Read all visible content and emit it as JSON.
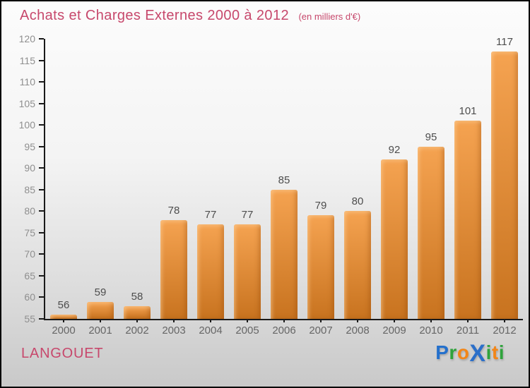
{
  "header": {
    "title": "Achats et Charges Externes 2000 à 2012",
    "subtitle": "(en milliers d'€)"
  },
  "footer": {
    "location": "LANGOUET",
    "logo": {
      "name": "Proxiti",
      "letters": [
        {
          "char": "P",
          "color": "#2470cc",
          "big": false
        },
        {
          "char": "r",
          "color": "#2fa33c",
          "big": false
        },
        {
          "char": "o",
          "color": "#f28618",
          "big": false
        },
        {
          "char": "X",
          "color": "#2b6fc9",
          "big": true
        },
        {
          "char": "i",
          "color": "#2fa33c",
          "big": false
        },
        {
          "char": "t",
          "color": "#f28618",
          "big": false
        },
        {
          "char": "i",
          "color": "#2fa33c",
          "big": false
        }
      ]
    }
  },
  "colors": {
    "title": "#c7486c",
    "location": "#c7486c",
    "bar_top": "#f5a351",
    "bar_bottom": "#c8731f",
    "axis": "#1a1a1a",
    "ytick_label": "#8f8f8f",
    "xtick_label": "#666666",
    "value_label": "#4d4d4d"
  },
  "chart_data": {
    "type": "bar",
    "title": "Achats et Charges Externes 2000 à 2012",
    "subtitle": "(en milliers d'€)",
    "categories": [
      "2000",
      "2001",
      "2002",
      "2003",
      "2004",
      "2005",
      "2006",
      "2007",
      "2008",
      "2009",
      "2010",
      "2011",
      "2012"
    ],
    "values": [
      56,
      59,
      58,
      78,
      77,
      77,
      85,
      79,
      80,
      92,
      95,
      101,
      117
    ],
    "xlabel": "",
    "ylabel": "",
    "ylim": [
      55,
      120
    ],
    "ytick_step": 5,
    "grid": false,
    "legend": false
  }
}
